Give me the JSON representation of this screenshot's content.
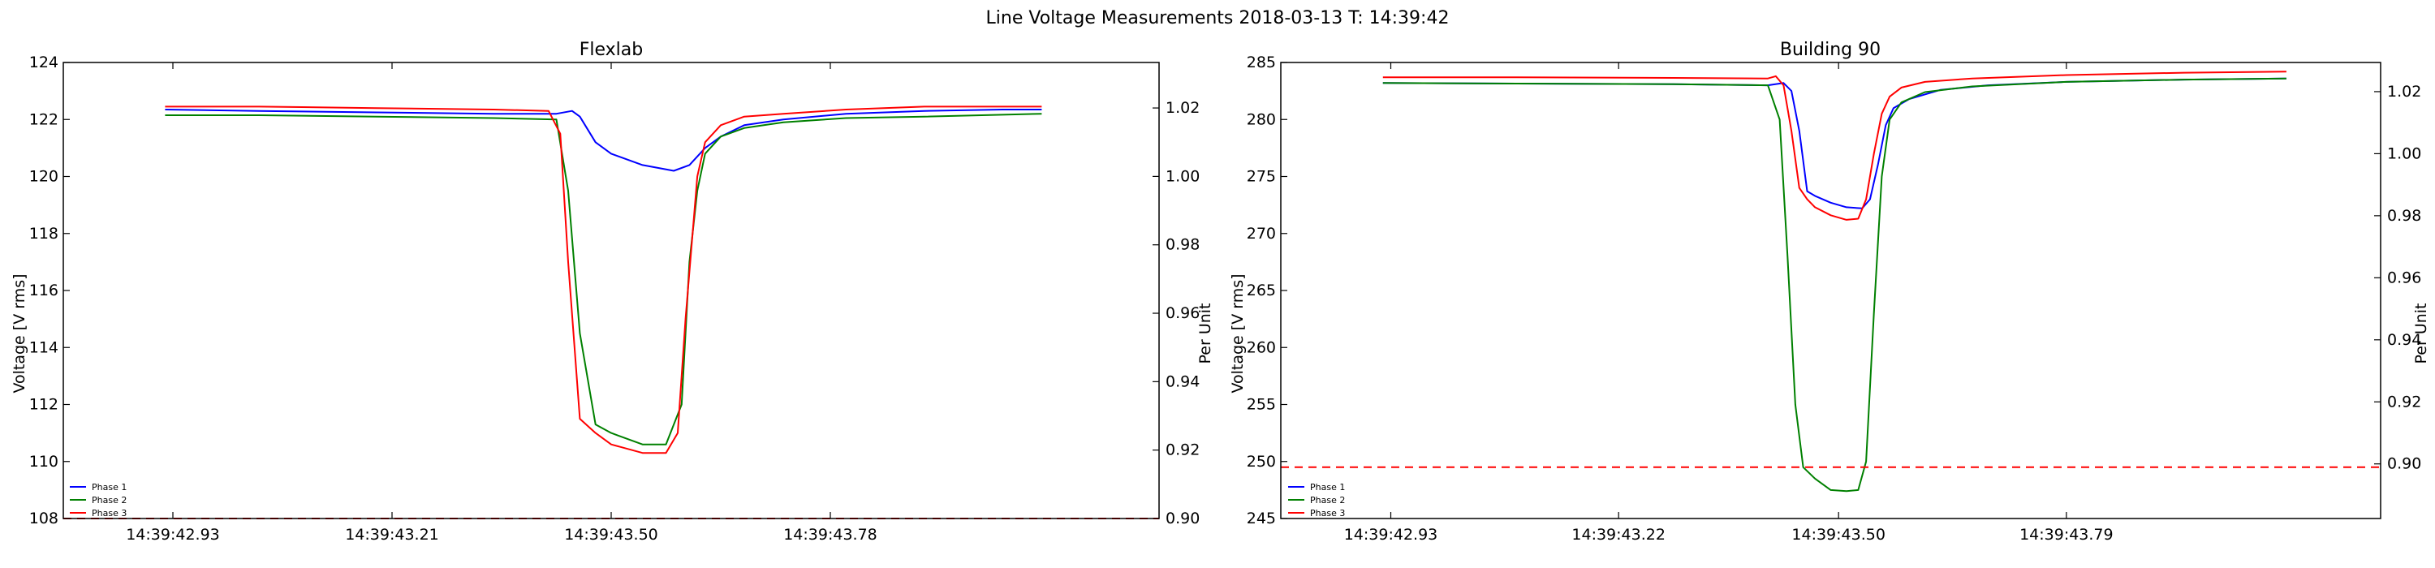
{
  "figure_title": "Line Voltage Measurements 2018-03-13 T: 14:39:42",
  "colors": {
    "phase1": "#0000ff",
    "phase2": "#008000",
    "phase3": "#ff0000",
    "limit": "#ff0000"
  },
  "chart_data": [
    {
      "type": "line",
      "title": "Flexlab",
      "ylabel": "Voltage [V rms]",
      "ylabel_right": "Per Unit",
      "xtick_labels": [
        "14:39:42.93",
        "14:39:43.21",
        "14:39:43.50",
        "14:39:43.78"
      ],
      "xlim": [
        0,
        1.4
      ],
      "xticks": [
        0.14,
        0.42,
        0.7,
        0.98
      ],
      "xrange_note": "seconds relative to 14:39:42.79",
      "ylim": [
        108,
        124
      ],
      "yticks": [
        108,
        110,
        112,
        114,
        116,
        118,
        120,
        122,
        124
      ],
      "ylim_right": [
        0.9,
        1.0333
      ],
      "yticks_right": [
        "0.90",
        "0.92",
        "0.94",
        "0.96",
        "0.98",
        "1.00",
        "1.02"
      ],
      "ytick_right_values": [
        0.9,
        0.92,
        0.94,
        0.96,
        0.98,
        1.0,
        1.02
      ],
      "limit_line": {
        "y": 108,
        "style": "dashed"
      },
      "legend": {
        "position": "lower-left",
        "entries": [
          "Phase 1",
          "Phase 2",
          "Phase 3"
        ]
      },
      "grid": false,
      "series": [
        {
          "name": "Phase 1",
          "color": "#0000ff",
          "x": [
            0.13,
            0.25,
            0.4,
            0.55,
            0.63,
            0.65,
            0.66,
            0.68,
            0.7,
            0.74,
            0.78,
            0.8,
            0.82,
            0.84,
            0.87,
            0.92,
            1.0,
            1.1,
            1.2,
            1.25
          ],
          "y": [
            122.35,
            122.3,
            122.25,
            122.2,
            122.2,
            122.3,
            122.1,
            121.2,
            120.8,
            120.4,
            120.2,
            120.4,
            121.0,
            121.4,
            121.8,
            122.0,
            122.2,
            122.3,
            122.35,
            122.35
          ]
        },
        {
          "name": "Phase 2",
          "color": "#008000",
          "x": [
            0.13,
            0.25,
            0.4,
            0.55,
            0.63,
            0.645,
            0.66,
            0.68,
            0.7,
            0.74,
            0.77,
            0.79,
            0.8,
            0.81,
            0.82,
            0.84,
            0.87,
            0.92,
            1.0,
            1.1,
            1.25
          ],
          "y": [
            122.15,
            122.15,
            122.1,
            122.05,
            122.0,
            119.5,
            114.5,
            111.3,
            111.0,
            110.6,
            110.6,
            112.0,
            117.0,
            119.5,
            120.8,
            121.4,
            121.7,
            121.9,
            122.05,
            122.1,
            122.2
          ]
        },
        {
          "name": "Phase 3",
          "color": "#ff0000",
          "x": [
            0.13,
            0.25,
            0.4,
            0.55,
            0.62,
            0.635,
            0.645,
            0.66,
            0.68,
            0.7,
            0.74,
            0.77,
            0.785,
            0.795,
            0.81,
            0.82,
            0.84,
            0.87,
            0.92,
            1.0,
            1.1,
            1.25
          ],
          "y": [
            122.45,
            122.45,
            122.4,
            122.35,
            122.3,
            121.5,
            117.0,
            111.5,
            111.0,
            110.6,
            110.3,
            110.3,
            111.0,
            115.0,
            120.0,
            121.2,
            121.8,
            122.1,
            122.2,
            122.35,
            122.45,
            122.45
          ]
        }
      ]
    },
    {
      "type": "line",
      "title": "Building 90",
      "ylabel": "Voltage [V rms]",
      "ylabel_right": "Per Unit",
      "xtick_labels": [
        "14:39:42.93",
        "14:39:43.22",
        "14:39:43.50",
        "14:39:43.79"
      ],
      "xlim": [
        0,
        1.4
      ],
      "xticks": [
        0.14,
        0.43,
        0.71,
        1.0
      ],
      "xrange_note": "seconds relative to 14:39:42.79",
      "ylim": [
        245,
        285
      ],
      "yticks": [
        245,
        250,
        255,
        260,
        265,
        270,
        275,
        280,
        285
      ],
      "ylim_right": [
        0.8824,
        1.0294
      ],
      "yticks_right": [
        "0.90",
        "0.92",
        "0.94",
        "0.96",
        "0.98",
        "1.00",
        "1.02"
      ],
      "ytick_right_values": [
        0.9,
        0.92,
        0.94,
        0.96,
        0.98,
        1.0,
        1.02
      ],
      "limit_line": {
        "y": 249.5,
        "style": "dashed"
      },
      "legend": {
        "position": "lower-left",
        "entries": [
          "Phase 1",
          "Phase 2",
          "Phase 3"
        ]
      },
      "grid": false,
      "series": [
        {
          "name": "Phase 1",
          "color": "#0000ff",
          "x": [
            0.13,
            0.3,
            0.5,
            0.62,
            0.64,
            0.65,
            0.66,
            0.67,
            0.68,
            0.7,
            0.72,
            0.74,
            0.75,
            0.76,
            0.77,
            0.78,
            0.8,
            0.84,
            0.9,
            1.0,
            1.15,
            1.28
          ],
          "y": [
            283.2,
            283.15,
            283.1,
            283.0,
            283.2,
            282.5,
            279.0,
            273.7,
            273.3,
            272.7,
            272.3,
            272.2,
            273.0,
            276.0,
            279.5,
            281.0,
            281.8,
            282.6,
            283.0,
            283.3,
            283.5,
            283.6
          ]
        },
        {
          "name": "Phase 2",
          "color": "#008000",
          "x": [
            0.13,
            0.3,
            0.5,
            0.62,
            0.635,
            0.645,
            0.655,
            0.665,
            0.68,
            0.7,
            0.72,
            0.735,
            0.745,
            0.755,
            0.765,
            0.775,
            0.79,
            0.82,
            0.88,
            1.0,
            1.15,
            1.28
          ],
          "y": [
            283.2,
            283.15,
            283.1,
            283.0,
            280.0,
            268.0,
            255.0,
            249.5,
            248.5,
            247.5,
            247.4,
            247.5,
            250.0,
            263.0,
            275.0,
            280.0,
            281.5,
            282.4,
            282.9,
            283.3,
            283.5,
            283.6
          ]
        },
        {
          "name": "Phase 3",
          "color": "#ff0000",
          "x": [
            0.13,
            0.3,
            0.5,
            0.62,
            0.63,
            0.64,
            0.65,
            0.66,
            0.67,
            0.68,
            0.7,
            0.72,
            0.735,
            0.745,
            0.755,
            0.765,
            0.775,
            0.79,
            0.82,
            0.88,
            1.0,
            1.15,
            1.28
          ],
          "y": [
            283.7,
            283.7,
            283.65,
            283.6,
            283.8,
            283.0,
            279.0,
            274.0,
            273.0,
            272.3,
            271.6,
            271.2,
            271.3,
            273.0,
            277.0,
            280.5,
            282.0,
            282.8,
            283.3,
            283.6,
            283.9,
            284.1,
            284.2
          ]
        }
      ]
    }
  ]
}
